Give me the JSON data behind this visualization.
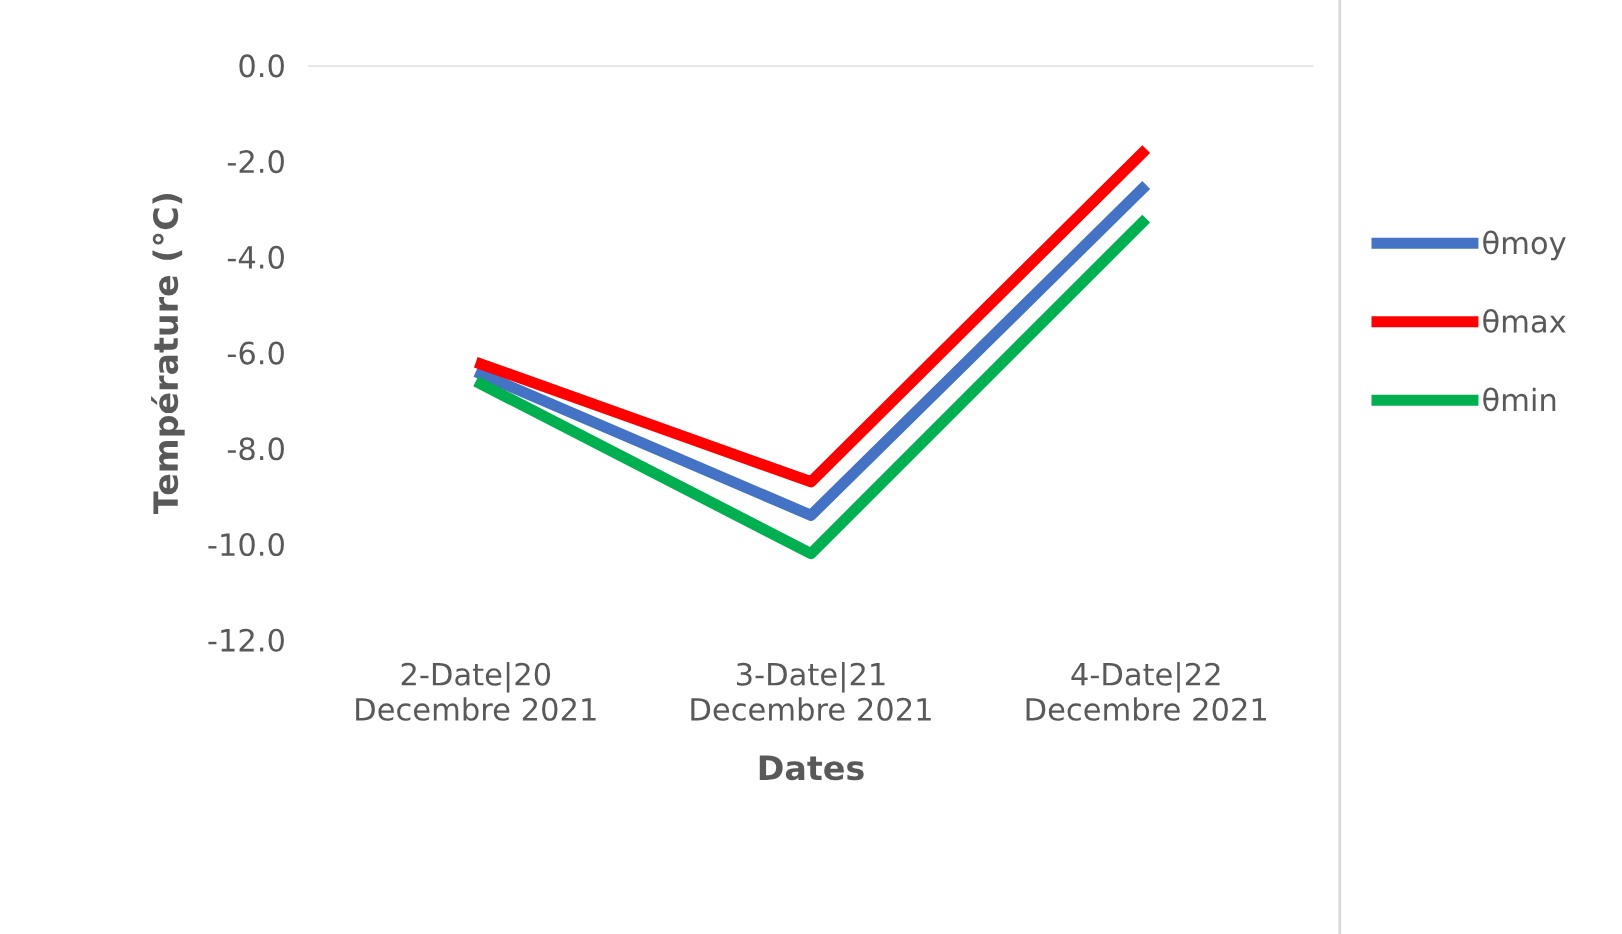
{
  "chart_data": {
    "type": "line",
    "xlabel": "Dates",
    "ylabel": "Température (°C)",
    "categories": [
      "2-Date|20\nDecembre 2021",
      "3-Date|21\nDecembre 2021",
      "4-Date|22\nDecembre 2021"
    ],
    "series": [
      {
        "name": "θmoy",
        "color": "#4472c4",
        "values": [
          -6.4,
          -9.4,
          -2.5
        ]
      },
      {
        "name": "θmax",
        "color": "#ff0000",
        "values": [
          -6.2,
          -8.7,
          -1.75
        ]
      },
      {
        "name": "θmin",
        "color": "#00b050",
        "values": [
          -6.6,
          -10.2,
          -3.2
        ]
      }
    ],
    "ylim": [
      -12,
      0
    ],
    "yticks": [
      {
        "value": 0,
        "label": "0.0"
      },
      {
        "value": -2,
        "label": "-2.0"
      },
      {
        "value": -4,
        "label": "-4.0"
      },
      {
        "value": -6,
        "label": "-6.0"
      },
      {
        "value": -8,
        "label": "-8.0"
      },
      {
        "value": -10,
        "label": "-10.0"
      },
      {
        "value": -12,
        "label": "-12.0"
      }
    ],
    "ref_lines": [
      {
        "axis": "y",
        "value": 0,
        "color": "#d9d9d9"
      }
    ],
    "legend": "right",
    "marker": "none",
    "line_style": "solid",
    "grid": false
  }
}
